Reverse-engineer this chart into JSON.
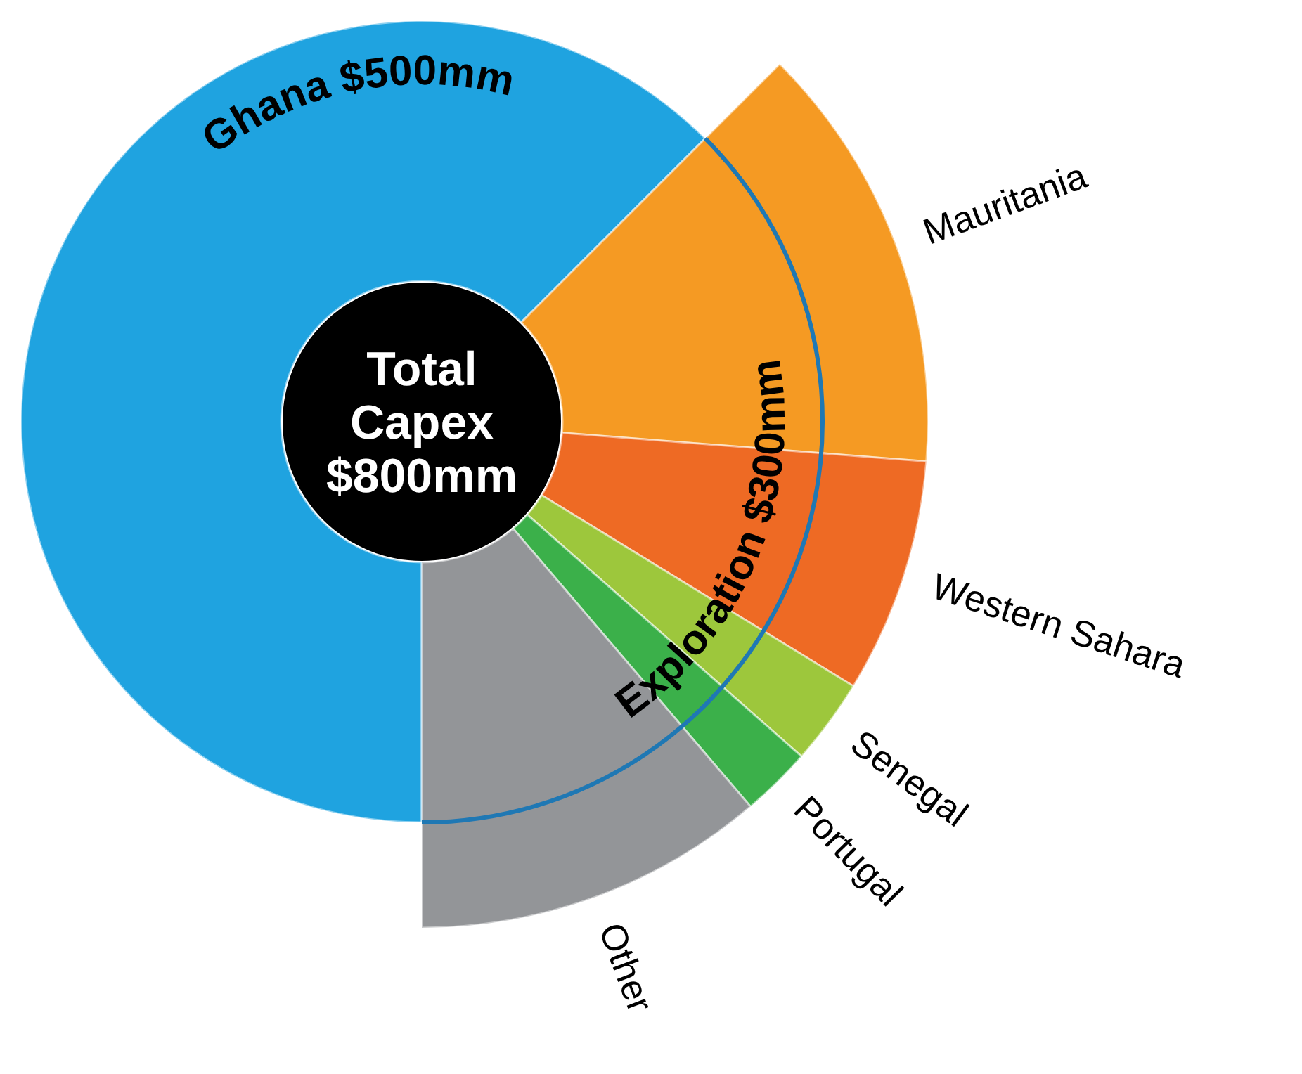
{
  "chart_data": {
    "type": "donut",
    "title": "Total Capex $800mm",
    "categories": [
      "Ghana",
      "Mauritania",
      "Western Sahara",
      "Senegal",
      "Portugal",
      "Other"
    ],
    "values": [
      500,
      110,
      60,
      22,
      18,
      90
    ],
    "value_labels": [
      "$500mm",
      null,
      null,
      null,
      null,
      null
    ],
    "colors": [
      "#1fa3e0",
      "#f59a23",
      "#ee6a24",
      "#9dc73c",
      "#3bb04a",
      "#939598"
    ],
    "annotations": [
      "Exploration $300mm"
    ]
  }
}
